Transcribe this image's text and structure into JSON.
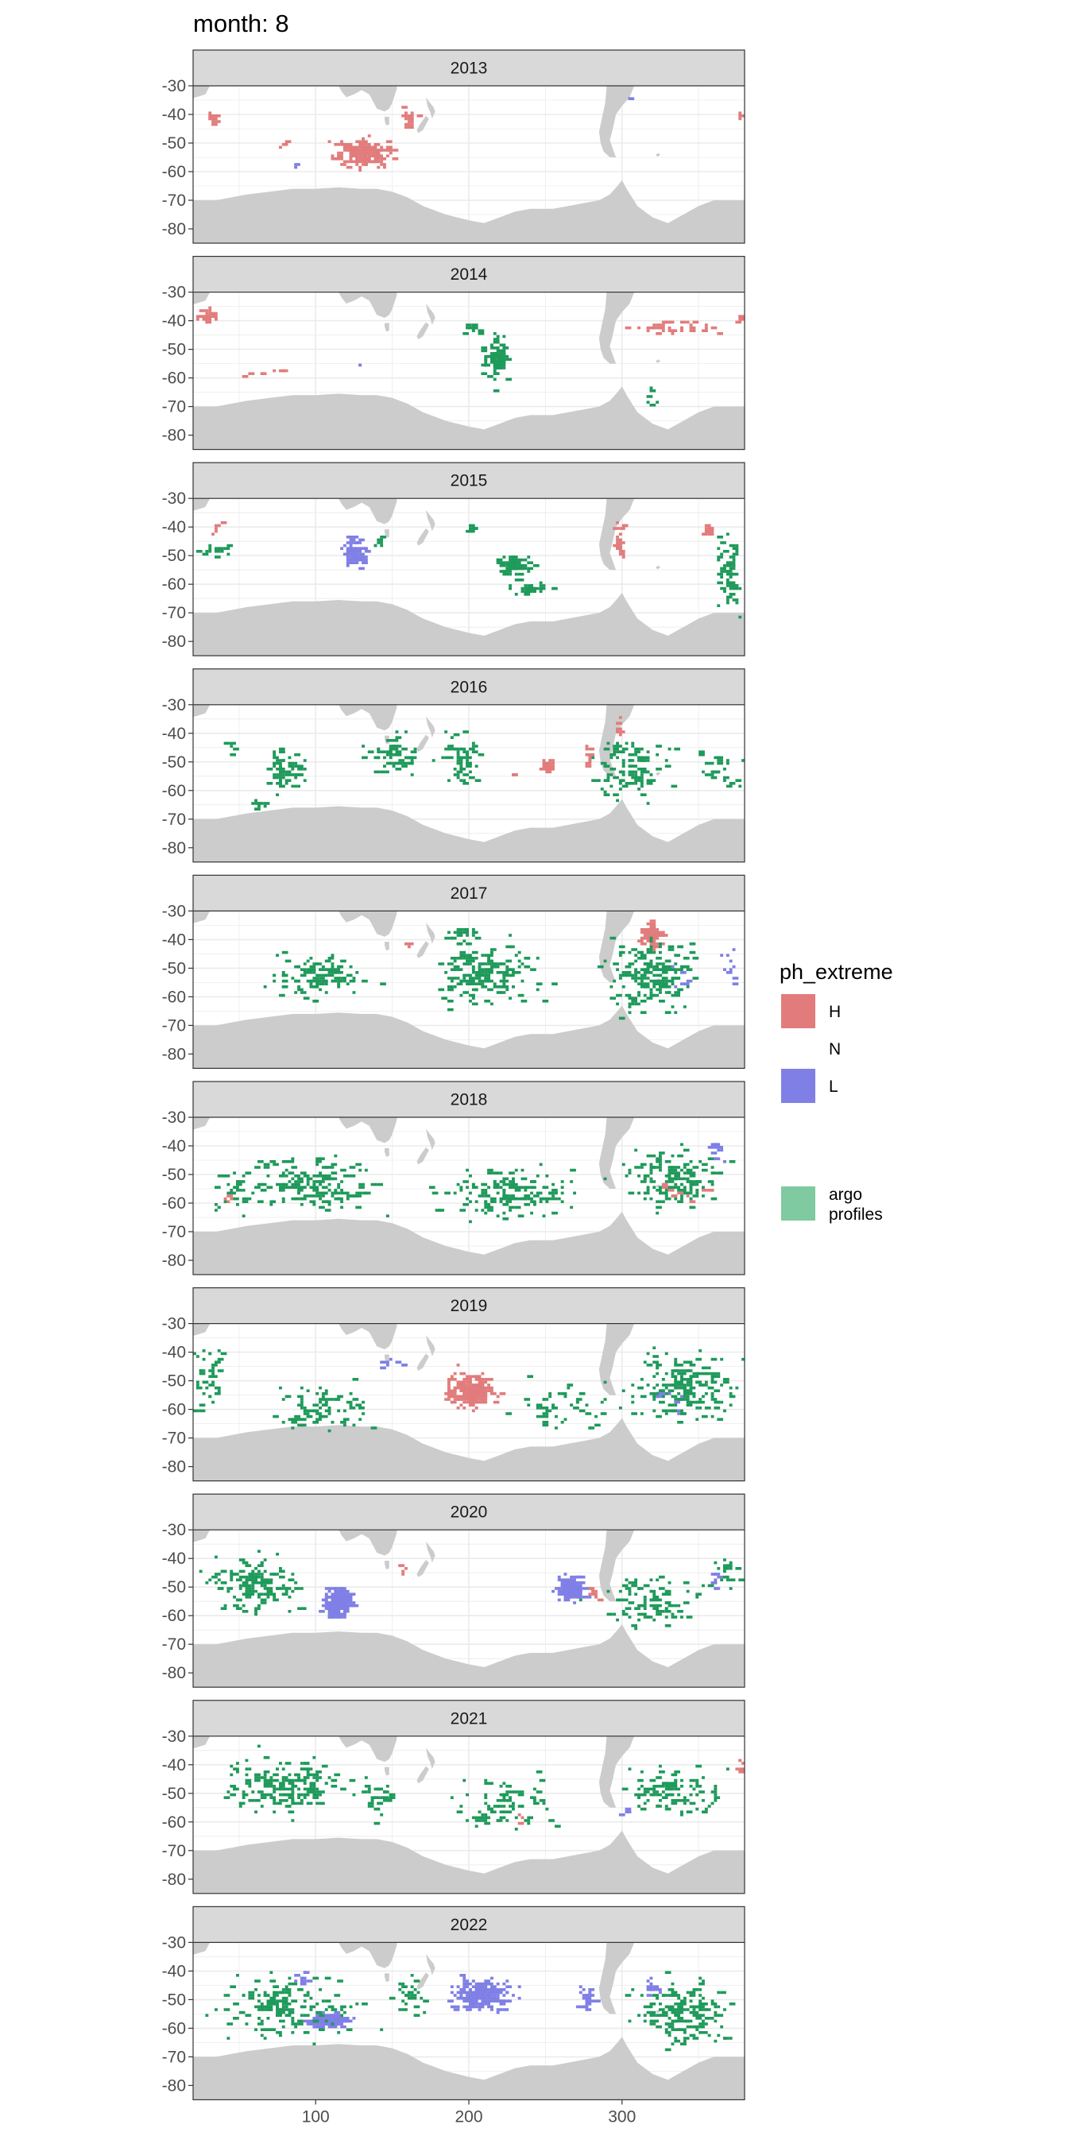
{
  "title": "month: 8",
  "chart_data": {
    "type": "heatmap",
    "title": "month: 8",
    "facet_by": "year",
    "facets": [
      "2013",
      "2014",
      "2015",
      "2016",
      "2017",
      "2018",
      "2019",
      "2020",
      "2021",
      "2022"
    ],
    "xlim": [
      20,
      380
    ],
    "ylim": [
      -85,
      -30
    ],
    "x_ticks": [
      100,
      200,
      300
    ],
    "x_tick_labels": [
      "100",
      "200",
      "300"
    ],
    "y_ticks": [
      -30,
      -40,
      -50,
      -60,
      -70,
      -80
    ],
    "y_tick_labels": [
      "-30",
      "-40",
      "-50",
      "-60",
      "-70",
      "-80"
    ],
    "grid": true,
    "legend": {
      "title": "ph_extreme",
      "placement": "right",
      "entries": [
        {
          "label": "H",
          "color": "#E27C7C"
        },
        {
          "label": "N",
          "color": "none"
        },
        {
          "label": "L",
          "color": "#7F7FE6"
        }
      ],
      "extra_entries": [
        {
          "label_line1": "argo",
          "label_line2": "profiles",
          "color": "#7FCAA0"
        }
      ]
    },
    "colors": {
      "H": "#E27C7C",
      "L": "#7F7FE6",
      "argo": "#1E9A5A",
      "land": "#cccccc",
      "strip": "#d9d9d9",
      "grid": "#ebebeb"
    },
    "clusters": {
      "2013": [
        {
          "cat": "H",
          "x": 130,
          "y": -53,
          "sx": 14,
          "sy": 4,
          "n": 160
        },
        {
          "cat": "H",
          "x": 160,
          "y": -42,
          "sx": 4,
          "sy": 3,
          "n": 18
        },
        {
          "cat": "H",
          "x": 32,
          "y": -41,
          "sx": 5,
          "sy": 2,
          "n": 10
        },
        {
          "cat": "H",
          "x": 376,
          "y": -41,
          "sx": 2,
          "sy": 2,
          "n": 5
        },
        {
          "cat": "H",
          "x": 77,
          "y": -50,
          "sx": 2,
          "sy": 2,
          "n": 3
        },
        {
          "cat": "L",
          "x": 85,
          "y": -58,
          "sx": 1,
          "sy": 1,
          "n": 2
        },
        {
          "cat": "L",
          "x": 304,
          "y": -34,
          "sx": 1,
          "sy": 1,
          "n": 2
        }
      ],
      "2014": [
        {
          "cat": "H",
          "x": 28,
          "y": -38,
          "sx": 6,
          "sy": 2,
          "n": 20
        },
        {
          "cat": "H",
          "x": 335,
          "y": -42,
          "sx": 22,
          "sy": 2,
          "n": 40
        },
        {
          "cat": "H",
          "x": 70,
          "y": -57,
          "sx": 14,
          "sy": 2,
          "n": 8
        },
        {
          "cat": "H",
          "x": 376,
          "y": -39,
          "sx": 2,
          "sy": 2,
          "n": 4
        },
        {
          "cat": "argo",
          "x": 216,
          "y": -53,
          "sx": 6,
          "sy": 6,
          "n": 80
        },
        {
          "cat": "argo",
          "x": 202,
          "y": -42,
          "sx": 5,
          "sy": 2,
          "n": 12
        },
        {
          "cat": "L",
          "x": 128,
          "y": -54,
          "sx": 1,
          "sy": 1,
          "n": 2
        },
        {
          "cat": "argo",
          "x": 318,
          "y": -65,
          "sx": 2,
          "sy": 4,
          "n": 6
        }
      ],
      "2015": [
        {
          "cat": "L",
          "x": 124,
          "y": -48,
          "sx": 6,
          "sy": 4,
          "n": 70
        },
        {
          "cat": "argo",
          "x": 35,
          "y": -48,
          "sx": 10,
          "sy": 2,
          "n": 14
        },
        {
          "cat": "argo",
          "x": 229,
          "y": -53,
          "sx": 10,
          "sy": 3,
          "n": 60
        },
        {
          "cat": "argo",
          "x": 238,
          "y": -61,
          "sx": 10,
          "sy": 2,
          "n": 30
        },
        {
          "cat": "argo",
          "x": 368,
          "y": -55,
          "sx": 6,
          "sy": 10,
          "n": 60
        },
        {
          "cat": "H",
          "x": 298,
          "y": -45,
          "sx": 4,
          "sy": 6,
          "n": 24
        },
        {
          "cat": "H",
          "x": 355,
          "y": -40,
          "sx": 3,
          "sy": 2,
          "n": 10
        },
        {
          "cat": "H",
          "x": 34,
          "y": -40,
          "sx": 3,
          "sy": 2,
          "n": 6
        },
        {
          "cat": "argo",
          "x": 200,
          "y": -40,
          "sx": 3,
          "sy": 2,
          "n": 6
        },
        {
          "cat": "argo",
          "x": 140,
          "y": -45,
          "sx": 3,
          "sy": 3,
          "n": 6
        }
      ],
      "2016": [
        {
          "cat": "argo",
          "x": 80,
          "y": -52,
          "sx": 10,
          "sy": 6,
          "n": 70
        },
        {
          "cat": "argo",
          "x": 45,
          "y": -44,
          "sx": 3,
          "sy": 2,
          "n": 6
        },
        {
          "cat": "argo",
          "x": 150,
          "y": -48,
          "sx": 14,
          "sy": 6,
          "n": 70
        },
        {
          "cat": "argo",
          "x": 195,
          "y": -50,
          "sx": 10,
          "sy": 8,
          "n": 60
        },
        {
          "cat": "argo",
          "x": 305,
          "y": -52,
          "sx": 20,
          "sy": 8,
          "n": 110
        },
        {
          "cat": "argo",
          "x": 365,
          "y": -52,
          "sx": 12,
          "sy": 6,
          "n": 30
        },
        {
          "cat": "H",
          "x": 250,
          "y": -51,
          "sx": 4,
          "sy": 2,
          "n": 20
        },
        {
          "cat": "H",
          "x": 277,
          "y": -48,
          "sx": 2,
          "sy": 4,
          "n": 12
        },
        {
          "cat": "H",
          "x": 297,
          "y": -37,
          "sx": 2,
          "sy": 3,
          "n": 8
        },
        {
          "cat": "H",
          "x": 230,
          "y": -54,
          "sx": 3,
          "sy": 1,
          "n": 4
        },
        {
          "cat": "argo",
          "x": 62,
          "y": -64,
          "sx": 5,
          "sy": 2,
          "n": 10
        }
      ],
      "2017": [
        {
          "cat": "H",
          "x": 318,
          "y": -38,
          "sx": 6,
          "sy": 3,
          "n": 60
        },
        {
          "cat": "argo",
          "x": 100,
          "y": -52,
          "sx": 25,
          "sy": 6,
          "n": 110
        },
        {
          "cat": "argo",
          "x": 210,
          "y": -52,
          "sx": 25,
          "sy": 8,
          "n": 170
        },
        {
          "cat": "argo",
          "x": 320,
          "y": -52,
          "sx": 22,
          "sy": 10,
          "n": 190
        },
        {
          "cat": "argo",
          "x": 195,
          "y": -38,
          "sx": 8,
          "sy": 3,
          "n": 20
        },
        {
          "cat": "L",
          "x": 370,
          "y": -48,
          "sx": 5,
          "sy": 6,
          "n": 10
        },
        {
          "cat": "L",
          "x": 340,
          "y": -55,
          "sx": 8,
          "sy": 4,
          "n": 8
        },
        {
          "cat": "H",
          "x": 160,
          "y": -41,
          "sx": 1,
          "sy": 1,
          "n": 3
        }
      ],
      "2018": [
        {
          "cat": "argo",
          "x": 100,
          "y": -53,
          "sx": 35,
          "sy": 7,
          "n": 160
        },
        {
          "cat": "argo",
          "x": 225,
          "y": -56,
          "sx": 35,
          "sy": 7,
          "n": 160
        },
        {
          "cat": "argo",
          "x": 335,
          "y": -52,
          "sx": 25,
          "sy": 8,
          "n": 150
        },
        {
          "cat": "argo",
          "x": 45,
          "y": -55,
          "sx": 12,
          "sy": 6,
          "n": 30
        },
        {
          "cat": "L",
          "x": 360,
          "y": -42,
          "sx": 6,
          "sy": 3,
          "n": 14
        },
        {
          "cat": "H",
          "x": 42,
          "y": -58,
          "sx": 2,
          "sy": 2,
          "n": 4
        },
        {
          "cat": "H",
          "x": 340,
          "y": -56,
          "sx": 12,
          "sy": 3,
          "n": 10
        }
      ],
      "2019": [
        {
          "cat": "H",
          "x": 200,
          "y": -53,
          "sx": 12,
          "sy": 5,
          "n": 180
        },
        {
          "cat": "argo",
          "x": 100,
          "y": -58,
          "sx": 25,
          "sy": 7,
          "n": 80
        },
        {
          "cat": "argo",
          "x": 340,
          "y": -52,
          "sx": 25,
          "sy": 9,
          "n": 190
        },
        {
          "cat": "argo",
          "x": 260,
          "y": -58,
          "sx": 25,
          "sy": 6,
          "n": 50
        },
        {
          "cat": "argo",
          "x": 30,
          "y": -48,
          "sx": 8,
          "sy": 10,
          "n": 40
        },
        {
          "cat": "L",
          "x": 150,
          "y": -44,
          "sx": 12,
          "sy": 2,
          "n": 10
        },
        {
          "cat": "L",
          "x": 330,
          "y": -55,
          "sx": 15,
          "sy": 5,
          "n": 8
        }
      ],
      "2020": [
        {
          "cat": "L",
          "x": 114,
          "y": -55,
          "sx": 8,
          "sy": 4,
          "n": 180
        },
        {
          "cat": "L",
          "x": 265,
          "y": -50,
          "sx": 7,
          "sy": 3,
          "n": 140
        },
        {
          "cat": "argo",
          "x": 60,
          "y": -50,
          "sx": 25,
          "sy": 8,
          "n": 140
        },
        {
          "cat": "argo",
          "x": 320,
          "y": -55,
          "sx": 25,
          "sy": 7,
          "n": 100
        },
        {
          "cat": "argo",
          "x": 365,
          "y": -44,
          "sx": 8,
          "sy": 4,
          "n": 20
        },
        {
          "cat": "L",
          "x": 360,
          "y": -48,
          "sx": 5,
          "sy": 3,
          "n": 8
        },
        {
          "cat": "H",
          "x": 155,
          "y": -43,
          "sx": 2,
          "sy": 2,
          "n": 5
        },
        {
          "cat": "H",
          "x": 282,
          "y": -52,
          "sx": 4,
          "sy": 2,
          "n": 8
        }
      ],
      "2021": [
        {
          "cat": "argo",
          "x": 80,
          "y": -47,
          "sx": 30,
          "sy": 8,
          "n": 170
        },
        {
          "cat": "argo",
          "x": 220,
          "y": -52,
          "sx": 25,
          "sy": 8,
          "n": 80
        },
        {
          "cat": "argo",
          "x": 330,
          "y": -48,
          "sx": 25,
          "sy": 7,
          "n": 90
        },
        {
          "cat": "argo",
          "x": 140,
          "y": -52,
          "sx": 8,
          "sy": 6,
          "n": 30
        },
        {
          "cat": "H",
          "x": 377,
          "y": -40,
          "sx": 2,
          "sy": 2,
          "n": 6
        },
        {
          "cat": "L",
          "x": 300,
          "y": -57,
          "sx": 6,
          "sy": 3,
          "n": 6
        },
        {
          "cat": "H",
          "x": 233,
          "y": -58,
          "sx": 2,
          "sy": 2,
          "n": 3
        }
      ],
      "2022": [
        {
          "cat": "L",
          "x": 208,
          "y": -48,
          "sx": 15,
          "sy": 4,
          "n": 180
        },
        {
          "cat": "L",
          "x": 108,
          "y": -57,
          "sx": 12,
          "sy": 2,
          "n": 110
        },
        {
          "cat": "L",
          "x": 276,
          "y": -49,
          "sx": 4,
          "sy": 3,
          "n": 24
        },
        {
          "cat": "L",
          "x": 90,
          "y": -42,
          "sx": 5,
          "sy": 2,
          "n": 12
        },
        {
          "cat": "L",
          "x": 320,
          "y": -46,
          "sx": 6,
          "sy": 3,
          "n": 14
        },
        {
          "cat": "argo",
          "x": 80,
          "y": -52,
          "sx": 35,
          "sy": 8,
          "n": 170
        },
        {
          "cat": "argo",
          "x": 340,
          "y": -55,
          "sx": 22,
          "sy": 9,
          "n": 170
        },
        {
          "cat": "argo",
          "x": 160,
          "y": -48,
          "sx": 10,
          "sy": 6,
          "n": 30
        }
      ]
    },
    "coastline": {
      "antarctica": [
        [
          20,
          -70
        ],
        [
          35,
          -70
        ],
        [
          45,
          -69
        ],
        [
          55,
          -68
        ],
        [
          70,
          -67
        ],
        [
          85,
          -66
        ],
        [
          100,
          -66
        ],
        [
          115,
          -65.5
        ],
        [
          130,
          -66
        ],
        [
          140,
          -66
        ],
        [
          150,
          -67
        ],
        [
          160,
          -69
        ],
        [
          170,
          -72
        ],
        [
          185,
          -75
        ],
        [
          200,
          -77
        ],
        [
          210,
          -78
        ],
        [
          220,
          -76
        ],
        [
          230,
          -74
        ],
        [
          240,
          -73
        ],
        [
          255,
          -73
        ],
        [
          265,
          -72
        ],
        [
          275,
          -71
        ],
        [
          285,
          -70
        ],
        [
          292,
          -68
        ],
        [
          297,
          -65
        ],
        [
          300,
          -63
        ],
        [
          303,
          -66
        ],
        [
          310,
          -72
        ],
        [
          320,
          -76
        ],
        [
          330,
          -78
        ],
        [
          340,
          -75
        ],
        [
          350,
          -72
        ],
        [
          360,
          -70
        ],
        [
          380,
          -70
        ]
      ],
      "australia": [
        [
          115,
          -30
        ],
        [
          117,
          -32
        ],
        [
          120,
          -34
        ],
        [
          125,
          -33
        ],
        [
          130,
          -31.5
        ],
        [
          135,
          -33
        ],
        [
          137,
          -35
        ],
        [
          140,
          -38
        ],
        [
          145,
          -39
        ],
        [
          148,
          -38
        ],
        [
          150,
          -36
        ],
        [
          153,
          -31
        ],
        [
          153,
          -30
        ]
      ],
      "tasmania": [
        [
          145,
          -40.8
        ],
        [
          148,
          -40.8
        ],
        [
          148,
          -43.5
        ],
        [
          146,
          -43.8
        ],
        [
          145,
          -42
        ]
      ],
      "nz_north": [
        [
          172,
          -34
        ],
        [
          174,
          -35.5
        ],
        [
          177,
          -37.5
        ],
        [
          178,
          -39
        ],
        [
          176,
          -41.5
        ],
        [
          175,
          -39.5
        ],
        [
          173,
          -37
        ]
      ],
      "nz_south": [
        [
          172,
          -40.5
        ],
        [
          174,
          -41.5
        ],
        [
          172,
          -43.5
        ],
        [
          170,
          -45.5
        ],
        [
          167,
          -46.5
        ],
        [
          166,
          -45.5
        ],
        [
          168,
          -43.5
        ]
      ],
      "south_america": [
        [
          290,
          -30
        ],
        [
          289,
          -36
        ],
        [
          287,
          -41
        ],
        [
          285,
          -46
        ],
        [
          286,
          -50
        ],
        [
          288,
          -53
        ],
        [
          292,
          -55
        ],
        [
          296,
          -55
        ],
        [
          294,
          -52
        ],
        [
          292,
          -49
        ],
        [
          294,
          -45
        ],
        [
          296,
          -40
        ],
        [
          300,
          -37
        ],
        [
          305,
          -34
        ],
        [
          308,
          -30
        ]
      ],
      "africa": [
        [
          17,
          -30
        ],
        [
          18.5,
          -34.5
        ],
        [
          22,
          -34
        ],
        [
          28,
          -33
        ],
        [
          31,
          -30
        ]
      ],
      "sg_island": [
        [
          322,
          -54
        ],
        [
          324,
          -53.5
        ],
        [
          325,
          -54.2
        ],
        [
          323,
          -54.8
        ]
      ]
    }
  }
}
